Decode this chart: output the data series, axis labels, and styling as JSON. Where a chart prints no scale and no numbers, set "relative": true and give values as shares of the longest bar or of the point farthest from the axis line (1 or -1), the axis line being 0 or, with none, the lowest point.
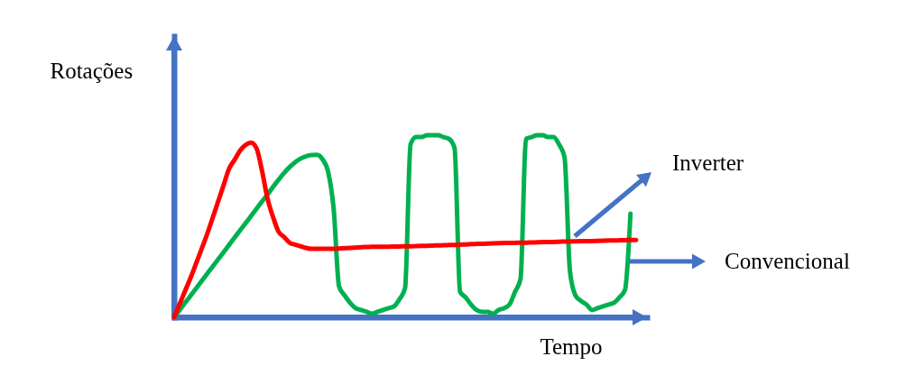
{
  "chart_data": {
    "type": "line",
    "relative": true,
    "xlabel": "Tempo",
    "ylabel": "Rotações",
    "line_style": "solid",
    "categories": [
      null,
      null,
      null,
      null,
      null,
      null,
      null,
      null,
      null,
      null,
      null,
      null,
      null,
      null,
      null,
      null,
      null,
      null,
      null,
      null,
      null,
      null,
      null,
      null,
      null,
      null,
      null,
      null,
      null,
      null,
      null,
      null,
      null,
      null,
      null,
      null,
      null,
      null,
      null,
      null,
      null,
      null,
      null,
      null,
      null,
      null,
      null,
      null,
      null,
      null,
      null,
      null,
      null,
      null,
      null,
      null,
      null,
      null,
      null,
      null,
      null,
      null,
      null,
      null,
      null,
      null,
      null,
      null,
      null,
      null,
      null,
      null,
      null,
      null,
      null,
      null,
      null,
      null,
      null,
      null,
      null,
      null,
      null,
      null,
      null
    ],
    "series": [
      {
        "color": "#ff0000",
        "values": [
          0,
          0.073,
          0.146,
          0.218,
          0.296,
          0.376,
          0.457,
          0.546,
          0.636,
          0.726,
          0.817,
          0.866,
          0.916,
          0.947,
          0.96,
          0.927,
          0.802,
          0.65,
          0.55,
          0.47,
          0.441,
          0.41,
          0.399,
          0.39,
          0.381,
          0.376,
          0.376,
          0.376,
          0.376,
          0.376,
          0.378,
          0.38,
          0.381,
          0.383,
          0.385,
          0.386,
          0.387,
          0.387,
          0.388,
          0.388,
          0.389,
          0.389,
          0.39,
          0.39,
          0.391,
          0.392,
          0.393,
          0.394,
          0.395,
          0.396,
          0.397,
          0.398,
          0.399,
          0.4,
          0.402,
          0.403,
          0.404,
          0.405,
          0.406,
          0.407,
          0.408,
          0.408,
          0.409,
          0.41,
          0.41,
          0.411,
          0.412,
          0.413,
          0.413,
          0.414,
          0.415,
          0.416,
          0.416,
          0.417,
          0.418,
          0.419,
          0.419,
          0.42,
          0.421,
          0.422,
          0.422,
          0.423,
          0.424,
          0.425,
          0.425
        ]
      },
      {
        "color": "#00b050",
        "values": [
          0,
          0.04,
          0.08,
          0.119,
          0.159,
          0.199,
          0.239,
          0.279,
          0.318,
          0.358,
          0.398,
          0.438,
          0.478,
          0.517,
          0.557,
          0.597,
          0.637,
          0.675,
          0.717,
          0.756,
          0.793,
          0.825,
          0.852,
          0.872,
          0.885,
          0.891,
          0.892,
          0.867,
          0.8,
          0.6,
          0.17,
          0.12,
          0.08,
          0.05,
          0.04,
          0.03,
          0.02,
          0.03,
          0.04,
          0.05,
          0.06,
          0.1,
          0.16,
          0.95,
          0.99,
          0.99,
          1.0,
          1.0,
          1.0,
          0.99,
          0.98,
          0.93,
          0.14,
          0.11,
          0.07,
          0.04,
          0.03,
          0.03,
          0.02,
          0.04,
          0.05,
          0.07,
          0.14,
          0.21,
          0.98,
          0.99,
          1.0,
          1.0,
          0.99,
          0.99,
          0.95,
          0.88,
          0.25,
          0.12,
          0.09,
          0.07,
          0.04,
          0.05,
          0.06,
          0.07,
          0.08,
          0.11,
          0.15,
          0.57,
          null
        ]
      }
    ],
    "annotations": [
      "Inverter",
      "Convencional"
    ]
  }
}
